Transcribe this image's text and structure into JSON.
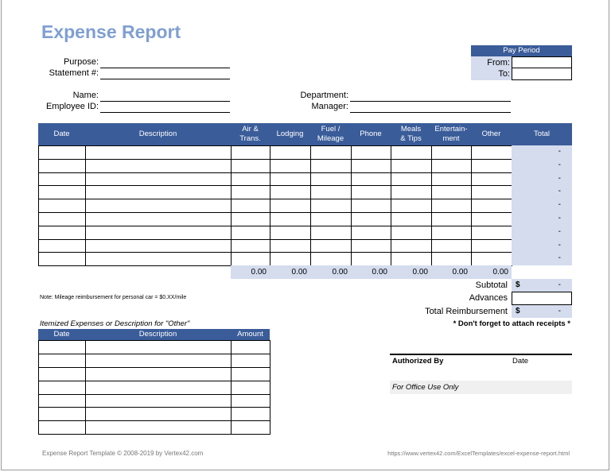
{
  "title": "Expense Report",
  "pay_period": {
    "header": "Pay Period",
    "from_label": "From:",
    "to_label": "To:",
    "from": "",
    "to": ""
  },
  "fields": {
    "purpose": "Purpose:",
    "statement": "Statement #:",
    "name": "Name:",
    "employee_id": "Employee ID:",
    "department": "Department:",
    "manager": "Manager:"
  },
  "colors": {
    "header": "#3a5c99",
    "light_blue": "#d4dcee",
    "title": "#7f9fd2"
  },
  "main_table": {
    "headers": [
      "Date",
      "Description",
      "Air &\nTrans.",
      "Lodging",
      "Fuel /\nMileage",
      "Phone",
      "Meals\n& Tips",
      "Entertain-\nment",
      "Other",
      "Total"
    ],
    "row_count": 9,
    "row_total": "-",
    "column_totals": [
      "0.00",
      "0.00",
      "0.00",
      "0.00",
      "0.00",
      "0.00",
      "0.00"
    ]
  },
  "summary": {
    "subtotal_label": "Subtotal",
    "subtotal_currency": "$",
    "subtotal_value": "-",
    "advances_label": "Advances",
    "advances_value": "",
    "total_label": "Total Reimbursement",
    "total_currency": "$",
    "total_value": "-",
    "receipts_note": "* Don't forget to attach receipts *"
  },
  "mileage_note": "Note: Mileage reimbursement for personal car = $0.XX/mile",
  "itemized": {
    "title": "Itemized Expenses or Description for \"Other\"",
    "headers": [
      "Date",
      "Description",
      "Amount"
    ],
    "row_count": 7
  },
  "authorization": {
    "authorized_by": "Authorized By",
    "date": "Date",
    "office_use": "For Office Use Only"
  },
  "footer": {
    "left": "Expense Report Template © 2008-2019 by Vertex42.com",
    "right": "https://www.vertex42.com/ExcelTemplates/excel-expense-report.html"
  }
}
